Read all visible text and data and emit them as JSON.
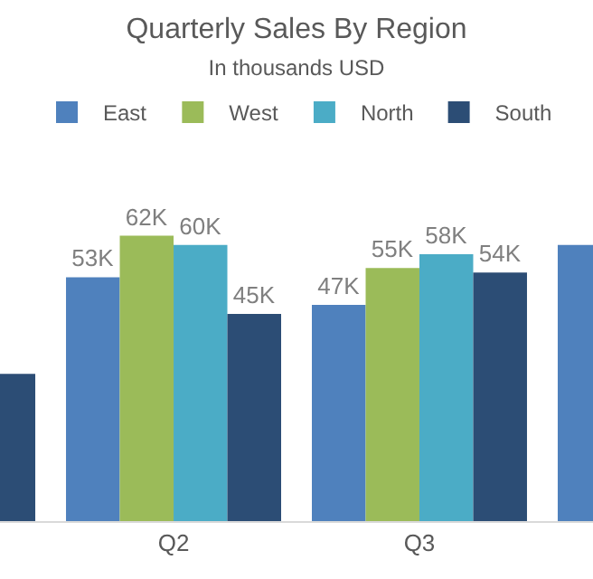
{
  "chart_data": {
    "type": "bar",
    "title": "Quarterly Sales By Region",
    "subtitle": "In thousands USD",
    "categories": [
      null,
      "Q2",
      "Q3",
      null
    ],
    "series": [
      {
        "name": "East",
        "color": "#4f81bd",
        "values": [
          null,
          53,
          47,
          60
        ],
        "value_labels": [
          null,
          "53K",
          "47K",
          null
        ]
      },
      {
        "name": "West",
        "color": "#9bbb59",
        "values": [
          null,
          62,
          55,
          null
        ],
        "value_labels": [
          null,
          "62K",
          "55K",
          null
        ]
      },
      {
        "name": "North",
        "color": "#4bacc6",
        "values": [
          null,
          60,
          58,
          null
        ],
        "value_labels": [
          null,
          "60K",
          "58K",
          null
        ]
      },
      {
        "name": "South",
        "color": "#2c4d75",
        "values": [
          32,
          45,
          54,
          null
        ],
        "value_labels": [
          null,
          "45K",
          "54K",
          null
        ]
      }
    ],
    "legend": "top"
  }
}
